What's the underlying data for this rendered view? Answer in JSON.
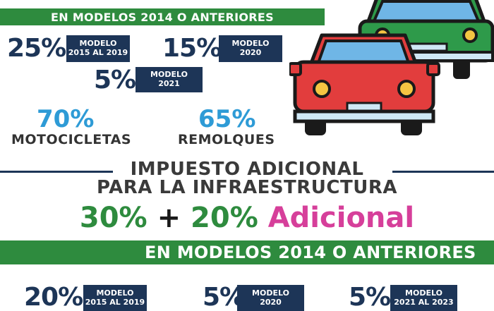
{
  "top_banner": "EN MODELOS 2014 O ANTERIORES",
  "top_rates": [
    {
      "pct": "25%",
      "tag_line1": "MODELO",
      "tag_line2": "2015 AL 2019"
    },
    {
      "pct": "15%",
      "tag_line1": "MODELO",
      "tag_line2": "2020"
    },
    {
      "pct": "5%",
      "tag_line1": "MODELO",
      "tag_line2": "2021"
    }
  ],
  "vehicles": [
    {
      "pct": "70%",
      "label": "MOTOCICLETAS"
    },
    {
      "pct": "65%",
      "label": "REMOLQUES"
    }
  ],
  "impuesto": {
    "line1": "IMPUESTO ADICIONAL",
    "line2": "PARA LA INFRAESTRUCTURA"
  },
  "rate": {
    "base": "30%",
    "plus": "+",
    "extra": "20%",
    "adicional": "Adicional"
  },
  "bottom_banner": "EN MODELOS 2014 O ANTERIORES",
  "bottom_rates": [
    {
      "pct": "20%",
      "tag_line1": "MODELO",
      "tag_line2": "2015 AL 2019"
    },
    {
      "pct": "5%",
      "tag_line1": "MODELO",
      "tag_line2": "2020"
    },
    {
      "pct": "5%",
      "tag_line1": "MODELO",
      "tag_line2": "2021 AL 2023"
    }
  ],
  "colors": {
    "green": "#2e8b3e",
    "navy": "#1d3557",
    "blue": "#2e9bd6",
    "magenta": "#d63f9a"
  },
  "icons": [
    "cars-icon"
  ]
}
